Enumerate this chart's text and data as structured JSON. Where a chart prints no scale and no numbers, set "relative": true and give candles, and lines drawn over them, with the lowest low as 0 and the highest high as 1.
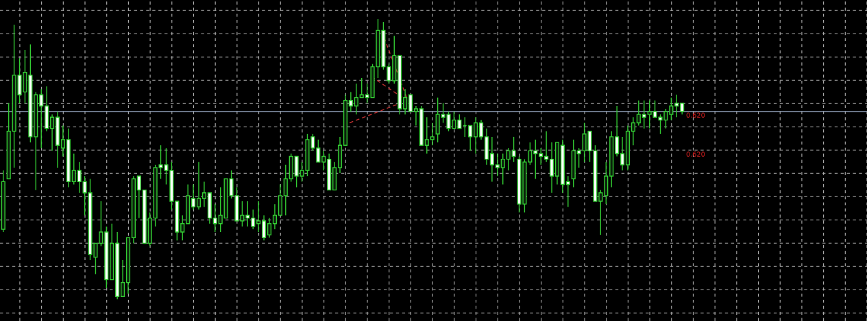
{
  "chart_data": {
    "type": "candlestick",
    "relative": true,
    "color": "#33cc33",
    "grid": true,
    "categories": [
      null,
      null,
      null,
      null,
      null,
      null,
      null,
      null,
      null,
      null,
      null,
      null,
      null,
      null,
      null,
      null,
      null,
      null,
      null,
      null,
      null,
      null,
      null,
      null,
      null,
      null,
      null,
      null,
      null,
      null,
      null,
      null,
      null,
      null,
      null,
      null,
      null,
      null,
      null,
      null,
      null,
      null,
      null,
      null,
      null,
      null,
      null,
      null,
      null,
      null,
      null,
      null,
      null,
      null,
      null,
      null,
      null,
      null,
      null,
      null,
      null,
      null,
      null,
      null,
      null,
      null,
      null,
      null,
      null,
      null,
      null,
      null,
      null,
      null,
      null,
      null,
      null,
      null,
      null,
      null,
      null,
      null,
      null,
      null,
      null,
      null,
      null,
      null,
      null,
      null,
      null,
      null,
      null,
      null,
      null,
      null,
      null,
      null,
      null,
      null,
      null,
      null,
      null,
      null,
      null,
      null,
      null,
      null,
      null,
      null,
      null,
      null,
      null,
      null,
      null,
      null,
      null,
      null,
      null,
      null,
      null,
      null,
      null,
      null,
      null,
      null
    ],
    "ohlc": [
      [
        0.25,
        0.46,
        0.24,
        0.42
      ],
      [
        0.43,
        0.7,
        0.43,
        0.6
      ],
      [
        0.6,
        0.98,
        0.47,
        0.8
      ],
      [
        0.8,
        0.86,
        0.7,
        0.73
      ],
      [
        0.74,
        0.89,
        0.7,
        0.81
      ],
      [
        0.8,
        0.91,
        0.56,
        0.58
      ],
      [
        0.58,
        0.74,
        0.39,
        0.73
      ],
      [
        0.73,
        0.75,
        0.54,
        0.69
      ],
      [
        0.69,
        0.76,
        0.6,
        0.61
      ],
      [
        0.61,
        0.66,
        0.53,
        0.65
      ],
      [
        0.65,
        0.67,
        0.47,
        0.55
      ],
      [
        0.54,
        0.62,
        0.51,
        0.57
      ],
      [
        0.57,
        0.61,
        0.4,
        0.42
      ],
      [
        0.42,
        0.52,
        0.41,
        0.46
      ],
      [
        0.46,
        0.49,
        0.38,
        0.42
      ],
      [
        0.42,
        0.44,
        0.3,
        0.38
      ],
      [
        0.38,
        0.43,
        0.14,
        0.16
      ],
      [
        0.15,
        0.2,
        0.09,
        0.2
      ],
      [
        0.2,
        0.35,
        0.19,
        0.24
      ],
      [
        0.24,
        0.26,
        0.04,
        0.07
      ],
      [
        0.07,
        0.27,
        0.07,
        0.2
      ],
      [
        0.2,
        0.24,
        0,
        0.01
      ],
      [
        0.01,
        0.14,
        0.01,
        0.06
      ],
      [
        0.06,
        0.22,
        0.02,
        0.22
      ],
      [
        0.22,
        0.44,
        0.2,
        0.43
      ],
      [
        0.44,
        0.44,
        0.29,
        0.39
      ],
      [
        0.39,
        0.39,
        0.2,
        0.2
      ],
      [
        0.2,
        0.31,
        0.19,
        0.29
      ],
      [
        0.29,
        0.48,
        0.26,
        0.47
      ],
      [
        0.48,
        0.55,
        0.43,
        0.47
      ],
      [
        0.48,
        0.54,
        0.41,
        0.46
      ],
      [
        0.46,
        0.49,
        0.32,
        0.35
      ],
      [
        0.35,
        0.35,
        0.21,
        0.24
      ],
      [
        0.24,
        0.3,
        0.21,
        0.27
      ],
      [
        0.27,
        0.41,
        0.27,
        0.37
      ],
      [
        0.36,
        0.41,
        0.32,
        0.33
      ],
      [
        0.33,
        0.49,
        0.32,
        0.36
      ],
      [
        0.36,
        0.42,
        0.33,
        0.38
      ],
      [
        0.38,
        0.38,
        0.27,
        0.29
      ],
      [
        0.29,
        0.34,
        0.24,
        0.27
      ],
      [
        0.27,
        0.4,
        0.24,
        0.3
      ],
      [
        0.29,
        0.43,
        0.29,
        0.43
      ],
      [
        0.43,
        0.46,
        0.36,
        0.37
      ],
      [
        0.37,
        0.4,
        0.28,
        0.28
      ],
      [
        0.28,
        0.35,
        0.26,
        0.3
      ],
      [
        0.3,
        0.35,
        0.26,
        0.29
      ],
      [
        0.29,
        0.32,
        0.25,
        0.26
      ],
      [
        0.27,
        0.35,
        0.24,
        0.28
      ],
      [
        0.28,
        0.3,
        0.21,
        0.22
      ],
      [
        0.23,
        0.29,
        0.22,
        0.27
      ],
      [
        0.27,
        0.34,
        0.25,
        0.3
      ],
      [
        0.3,
        0.41,
        0.3,
        0.37
      ],
      [
        0.37,
        0.48,
        0.3,
        0.43
      ],
      [
        0.43,
        0.52,
        0.42,
        0.51
      ],
      [
        0.51,
        0.51,
        0.4,
        0.44
      ],
      [
        0.44,
        0.49,
        0.42,
        0.46
      ],
      [
        0.46,
        0.59,
        0.44,
        0.57
      ],
      [
        0.58,
        0.59,
        0.53,
        0.54
      ],
      [
        0.54,
        0.57,
        0.49,
        0.49
      ],
      [
        0.49,
        0.53,
        0.46,
        0.51
      ],
      [
        0.5,
        0.52,
        0.39,
        0.39
      ],
      [
        0.39,
        0.49,
        0.39,
        0.47
      ],
      [
        0.47,
        0.58,
        0.45,
        0.55
      ],
      [
        0.55,
        0.73,
        0.55,
        0.71
      ],
      [
        0.71,
        0.74,
        0.67,
        0.69
      ],
      [
        0.69,
        0.77,
        0.66,
        0.72
      ],
      [
        0.72,
        0.79,
        0.72,
        0.73
      ],
      [
        0.73,
        0.77,
        0.7,
        0.72
      ],
      [
        0.72,
        0.84,
        0.72,
        0.83
      ],
      [
        0.83,
        1,
        0.79,
        0.96
      ],
      [
        0.96,
        0.99,
        0.82,
        0.83
      ],
      [
        0.83,
        0.84,
        0.77,
        0.78
      ],
      [
        0.78,
        0.94,
        0.77,
        0.87
      ],
      [
        0.87,
        0.87,
        0.66,
        0.68
      ],
      [
        0.68,
        0.75,
        0.66,
        0.72
      ],
      [
        0.73,
        0.73,
        0.67,
        0.67
      ],
      [
        0.67,
        0.69,
        0.62,
        0.68
      ],
      [
        0.68,
        0.69,
        0.55,
        0.55
      ],
      [
        0.55,
        0.65,
        0.52,
        0.57
      ],
      [
        0.57,
        0.63,
        0.55,
        0.58
      ],
      [
        0.59,
        0.72,
        0.56,
        0.66
      ],
      [
        0.66,
        0.7,
        0.63,
        0.65
      ],
      [
        0.66,
        0.67,
        0.6,
        0.61
      ],
      [
        0.61,
        0.67,
        0.61,
        0.64
      ],
      [
        0.64,
        0.66,
        0.61,
        0.61
      ],
      [
        0.62,
        0.65,
        0.58,
        0.62
      ],
      [
        0.62,
        0.62,
        0.53,
        0.58
      ],
      [
        0.58,
        0.65,
        0.52,
        0.63
      ],
      [
        0.63,
        0.64,
        0.57,
        0.58
      ],
      [
        0.58,
        0.61,
        0.48,
        0.5
      ],
      [
        0.52,
        0.58,
        0.42,
        0.48
      ],
      [
        0.48,
        0.52,
        0.44,
        0.47
      ],
      [
        0.47,
        0.52,
        0.41,
        0.5
      ],
      [
        0.5,
        0.54,
        0.46,
        0.53
      ],
      [
        0.53,
        0.58,
        0.49,
        0.51
      ],
      [
        0.5,
        0.51,
        0.31,
        0.34
      ],
      [
        0.34,
        0.5,
        0.31,
        0.49
      ],
      [
        0.49,
        0.56,
        0.48,
        0.53
      ],
      [
        0.53,
        0.57,
        0.43,
        0.52
      ],
      [
        0.52,
        0.54,
        0.48,
        0.51
      ],
      [
        0.51,
        0.6,
        0.49,
        0.5
      ],
      [
        0.5,
        0.56,
        0.38,
        0.44
      ],
      [
        0.44,
        0.56,
        0.41,
        0.56
      ],
      [
        0.55,
        0.57,
        0.38,
        0.41
      ],
      [
        0.42,
        0.44,
        0.33,
        0.41
      ],
      [
        0.43,
        0.57,
        0.4,
        0.53
      ],
      [
        0.53,
        0.54,
        0.47,
        0.52
      ],
      [
        0.53,
        0.63,
        0.49,
        0.59
      ],
      [
        0.6,
        0.6,
        0.49,
        0.53
      ],
      [
        0.53,
        0.55,
        0.35,
        0.35
      ],
      [
        0.35,
        0.39,
        0.23,
        0.38
      ],
      [
        0.37,
        0.49,
        0.34,
        0.44
      ],
      [
        0.44,
        0.6,
        0.4,
        0.58
      ],
      [
        0.58,
        0.69,
        0.51,
        0.52
      ],
      [
        0.52,
        0.58,
        0.46,
        0.48
      ],
      [
        0.48,
        0.62,
        0.46,
        0.6
      ],
      [
        0.6,
        0.65,
        0.55,
        0.63
      ],
      [
        0.63,
        0.71,
        0.62,
        0.66
      ],
      [
        0.66,
        0.71,
        0.61,
        0.65
      ],
      [
        0.66,
        0.71,
        0.61,
        0.67
      ],
      [
        0.67,
        0.71,
        0.65,
        0.65
      ],
      [
        0.65,
        0.66,
        0.59,
        0.64
      ],
      [
        0.64,
        0.68,
        0.61,
        0.67
      ],
      [
        0.66,
        0.72,
        0.64,
        0.69
      ],
      [
        0.7,
        0.73,
        0.65,
        0.69
      ],
      [
        0.7,
        0.7,
        0.66,
        0.67
      ]
    ],
    "ref_lines": [
      {
        "axis": "y",
        "value": 0.67,
        "color": "#8c9cb4"
      }
    ],
    "annotations": [
      "0.620",
      "0.620"
    ]
  }
}
